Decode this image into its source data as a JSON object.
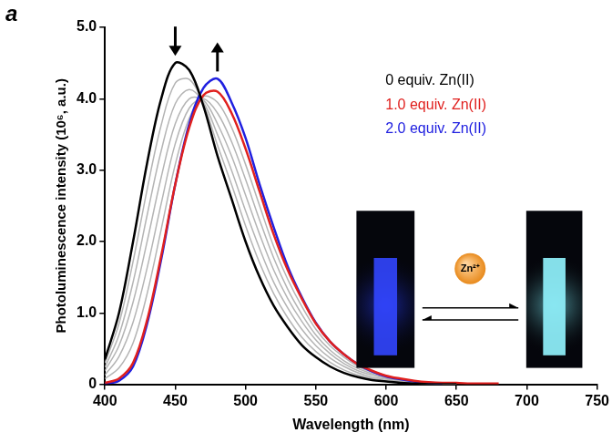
{
  "chart_data": {
    "type": "line",
    "panel_label": "a",
    "x_label": "Wavelength (nm)",
    "y_label": "Photoluminescence intensity (10⁶, a.u.)",
    "annotation": "Zn²⁺",
    "x": [
      400,
      410,
      420,
      430,
      440,
      450,
      460,
      470,
      480,
      490,
      500,
      510,
      520,
      530,
      540,
      550,
      560,
      570,
      580,
      590,
      600,
      610,
      620,
      630,
      640,
      650,
      660,
      670,
      680
    ],
    "series": [
      {
        "name": "0 equiv. Zn(II)",
        "color": "#000000",
        "values": [
          0.35,
          1.0,
          2.0,
          3.1,
          4.0,
          4.5,
          4.4,
          3.9,
          3.2,
          2.6,
          2.0,
          1.5,
          1.1,
          0.8,
          0.55,
          0.38,
          0.25,
          0.16,
          0.1,
          0.06,
          0.04,
          0.02,
          0.01,
          0,
          0,
          0,
          null,
          null,
          null
        ]
      },
      {
        "color": "#b4b4b4",
        "values": [
          0.3,
          0.85,
          1.72,
          2.73,
          3.63,
          4.22,
          4.27,
          3.93,
          3.35,
          2.8,
          2.22,
          1.7,
          1.27,
          0.93,
          0.66,
          0.46,
          0.31,
          0.2,
          0.13,
          0.08,
          0.05,
          0.03,
          0.02,
          0.01,
          0,
          0,
          null,
          null,
          null
        ]
      },
      {
        "color": "#b4b4b4",
        "values": [
          0.24,
          0.69,
          1.43,
          2.37,
          3.27,
          3.93,
          4.13,
          3.95,
          3.5,
          3.0,
          2.43,
          1.9,
          1.43,
          1.07,
          0.77,
          0.54,
          0.37,
          0.25,
          0.16,
          0.1,
          0.07,
          0.04,
          0.02,
          0.01,
          0.01,
          0.01,
          null,
          null,
          null
        ]
      },
      {
        "color": "#b4b4b4",
        "values": [
          0.19,
          0.54,
          1.15,
          2.0,
          2.9,
          3.65,
          4.0,
          3.98,
          3.65,
          3.2,
          2.65,
          2.1,
          1.6,
          1.2,
          0.88,
          0.62,
          0.43,
          0.29,
          0.19,
          0.13,
          0.08,
          0.05,
          0.03,
          0.02,
          0.01,
          0.01,
          null,
          null,
          null
        ]
      },
      {
        "color": "#b4b4b4",
        "values": [
          0.13,
          0.39,
          0.87,
          1.63,
          2.53,
          3.37,
          3.87,
          4.0,
          3.8,
          3.4,
          2.87,
          2.3,
          1.77,
          1.33,
          0.98,
          0.69,
          0.48,
          0.33,
          0.22,
          0.15,
          0.09,
          0.06,
          0.04,
          0.02,
          0.01,
          0.01,
          null,
          null,
          null
        ]
      },
      {
        "color": "#b4b4b4",
        "values": [
          0.08,
          0.23,
          0.58,
          1.27,
          2.17,
          3.08,
          3.73,
          4.03,
          3.95,
          3.6,
          3.08,
          2.5,
          1.93,
          1.47,
          1.09,
          0.77,
          0.54,
          0.38,
          0.25,
          0.17,
          0.11,
          0.07,
          0.04,
          0.03,
          0.02,
          0.02,
          null,
          null,
          null
        ]
      },
      {
        "name": "1.0 equiv. Zn(II)",
        "color": "#e0201e",
        "values": [
          0.02,
          0.08,
          0.3,
          0.9,
          1.8,
          2.8,
          3.6,
          4.05,
          4.1,
          3.8,
          3.3,
          2.7,
          2.1,
          1.6,
          1.2,
          0.85,
          0.6,
          0.42,
          0.28,
          0.19,
          0.12,
          0.08,
          0.05,
          0.03,
          0.02,
          0.02,
          0.01,
          0.01,
          0.01
        ]
      },
      {
        "name": "2.0 equiv. Zn(II)",
        "color": "#2020e0",
        "values": [
          0.01,
          0.05,
          0.25,
          0.85,
          1.75,
          2.8,
          3.65,
          4.15,
          4.28,
          3.95,
          3.45,
          2.8,
          2.2,
          1.65,
          1.22,
          0.86,
          0.6,
          0.42,
          0.28,
          0.18,
          0.11,
          0.07,
          0.04,
          0.02,
          0.01,
          null,
          null,
          null,
          null
        ]
      }
    ],
    "xlim": [
      400,
      750
    ],
    "xticks": [
      400,
      450,
      500,
      550,
      600,
      650,
      700,
      750
    ],
    "ylim": [
      0,
      5
    ],
    "yticks": [
      0,
      {
        "value": 1,
        "label": "1.0"
      },
      {
        "value": 2,
        "label": "2.0"
      },
      {
        "value": 3,
        "label": "3.0"
      },
      {
        "value": 4,
        "label": "4.0"
      },
      {
        "value": 5,
        "label": "5.0"
      }
    ],
    "grid": false,
    "legend": "upper right"
  }
}
